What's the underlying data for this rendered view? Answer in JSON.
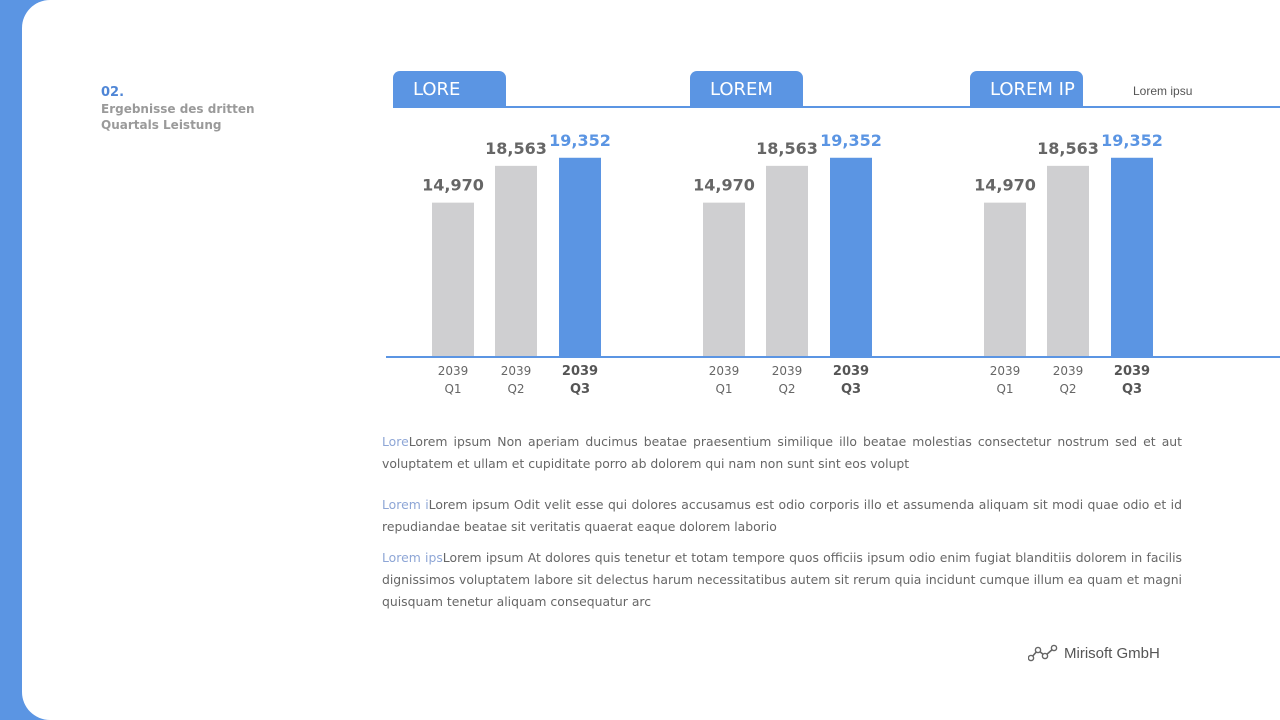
{
  "section": {
    "number": "02.",
    "title": "Ergebnisse des dritten Quartals Leistung"
  },
  "tabs": [
    "LORE",
    "LOREM",
    "LOREM IP"
  ],
  "side_label": "Lorem ipsu",
  "chart_data": [
    {
      "type": "bar",
      "title": "LORE",
      "categories": [
        [
          "2039",
          "Q1"
        ],
        [
          "2039",
          "Q2"
        ],
        [
          "2039",
          "Q3"
        ]
      ],
      "values": [
        14970,
        18563,
        19352
      ],
      "value_labels": [
        "14,970",
        "18,563",
        "19,352"
      ],
      "highlight_index": 2,
      "ylim": [
        0,
        20500
      ]
    },
    {
      "type": "bar",
      "title": "LOREM",
      "categories": [
        [
          "2039",
          "Q1"
        ],
        [
          "2039",
          "Q2"
        ],
        [
          "2039",
          "Q3"
        ]
      ],
      "values": [
        14970,
        18563,
        19352
      ],
      "value_labels": [
        "14,970",
        "18,563",
        "19,352"
      ],
      "highlight_index": 2,
      "ylim": [
        0,
        20500
      ]
    },
    {
      "type": "bar",
      "title": "LOREM IP",
      "categories": [
        [
          "2039",
          "Q1"
        ],
        [
          "2039",
          "Q2"
        ],
        [
          "2039",
          "Q3"
        ]
      ],
      "values": [
        14970,
        18563,
        19352
      ],
      "value_labels": [
        "14,970",
        "18,563",
        "19,352"
      ],
      "highlight_index": 2,
      "ylim": [
        0,
        20500
      ]
    }
  ],
  "colors": {
    "accent": "#5b95e3",
    "bar": "#cfcfd1",
    "value_text": "#666666",
    "highlight_text": "#5b95e3"
  },
  "paragraphs": [
    {
      "lead": "Lore",
      "text": "Lorem ipsum Non aperiam ducimus beatae praesentium similique illo beatae molestias consectetur nostrum sed et aut voluptatem et ullam et cupiditate porro ab dolorem qui nam non sunt sint eos volupt"
    },
    {
      "lead": "Lorem i",
      "text": "Lorem ipsum Odit velit esse qui dolores accusamus est odio corporis illo et assumenda aliquam sit modi quae odio et id repudiandae beatae sit veritatis quaerat eaque dolorem laborio"
    },
    {
      "lead": "Lorem ips",
      "text": "Lorem ipsum At dolores quis tenetur et totam tempore quos officiis ipsum odio enim fugiat blanditiis dolorem in facilis dignissimos voluptatem labore sit delectus harum necessitatibus autem sit rerum quia incidunt cumque illum ea quam et magni quisquam tenetur aliquam consequatur arc"
    }
  ],
  "brand": {
    "name": "Mirisoft GmbH",
    "icon": "line-chart-logo-icon"
  }
}
